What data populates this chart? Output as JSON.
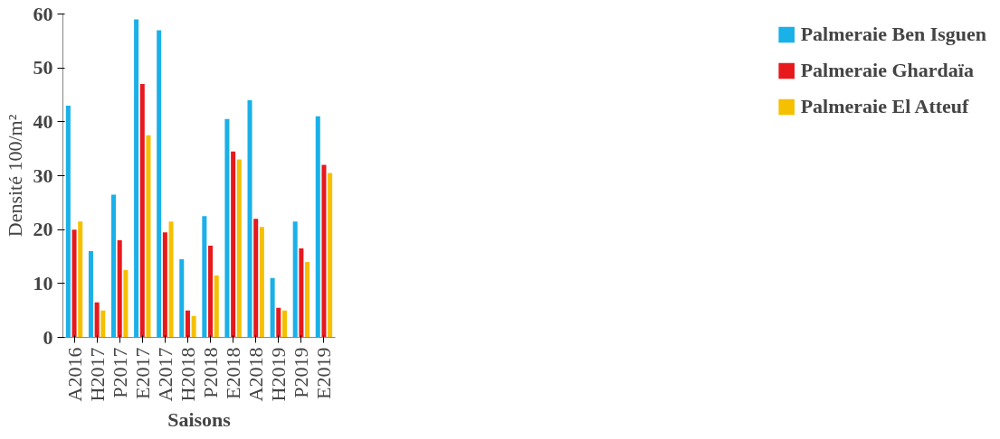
{
  "chart_data": {
    "type": "bar",
    "xlabel": "Saisons",
    "ylabel": "Densité 100/m²",
    "categories": [
      "A2016",
      "H2017",
      "P2017",
      "E2017",
      "A2017",
      "H2018",
      "P2018",
      "E2018",
      "A2018",
      "H2019",
      "P2019",
      "E2019"
    ],
    "series": [
      {
        "name": "Palmeraie Ben Isguen",
        "color": "#1ab0e8",
        "values": [
          43,
          16,
          26.5,
          59,
          57,
          14.5,
          22.5,
          40.5,
          44,
          11,
          21.5,
          41
        ]
      },
      {
        "name": "Palmeraie Ghardaïa",
        "color": "#e8191d",
        "values": [
          20,
          6.5,
          18,
          47,
          19.5,
          5,
          17,
          34.5,
          22,
          5.5,
          16.5,
          32
        ]
      },
      {
        "name": "Palmeraie El Atteuf",
        "color": "#f5c000",
        "values": [
          21.5,
          5,
          12.5,
          37.5,
          21.5,
          4,
          11.5,
          33,
          20.5,
          5,
          14,
          30.5
        ]
      }
    ],
    "ylim": [
      0,
      60
    ],
    "yticks": [
      0,
      10,
      20,
      30,
      40,
      50,
      60
    ],
    "grid": false,
    "legend": "right"
  }
}
